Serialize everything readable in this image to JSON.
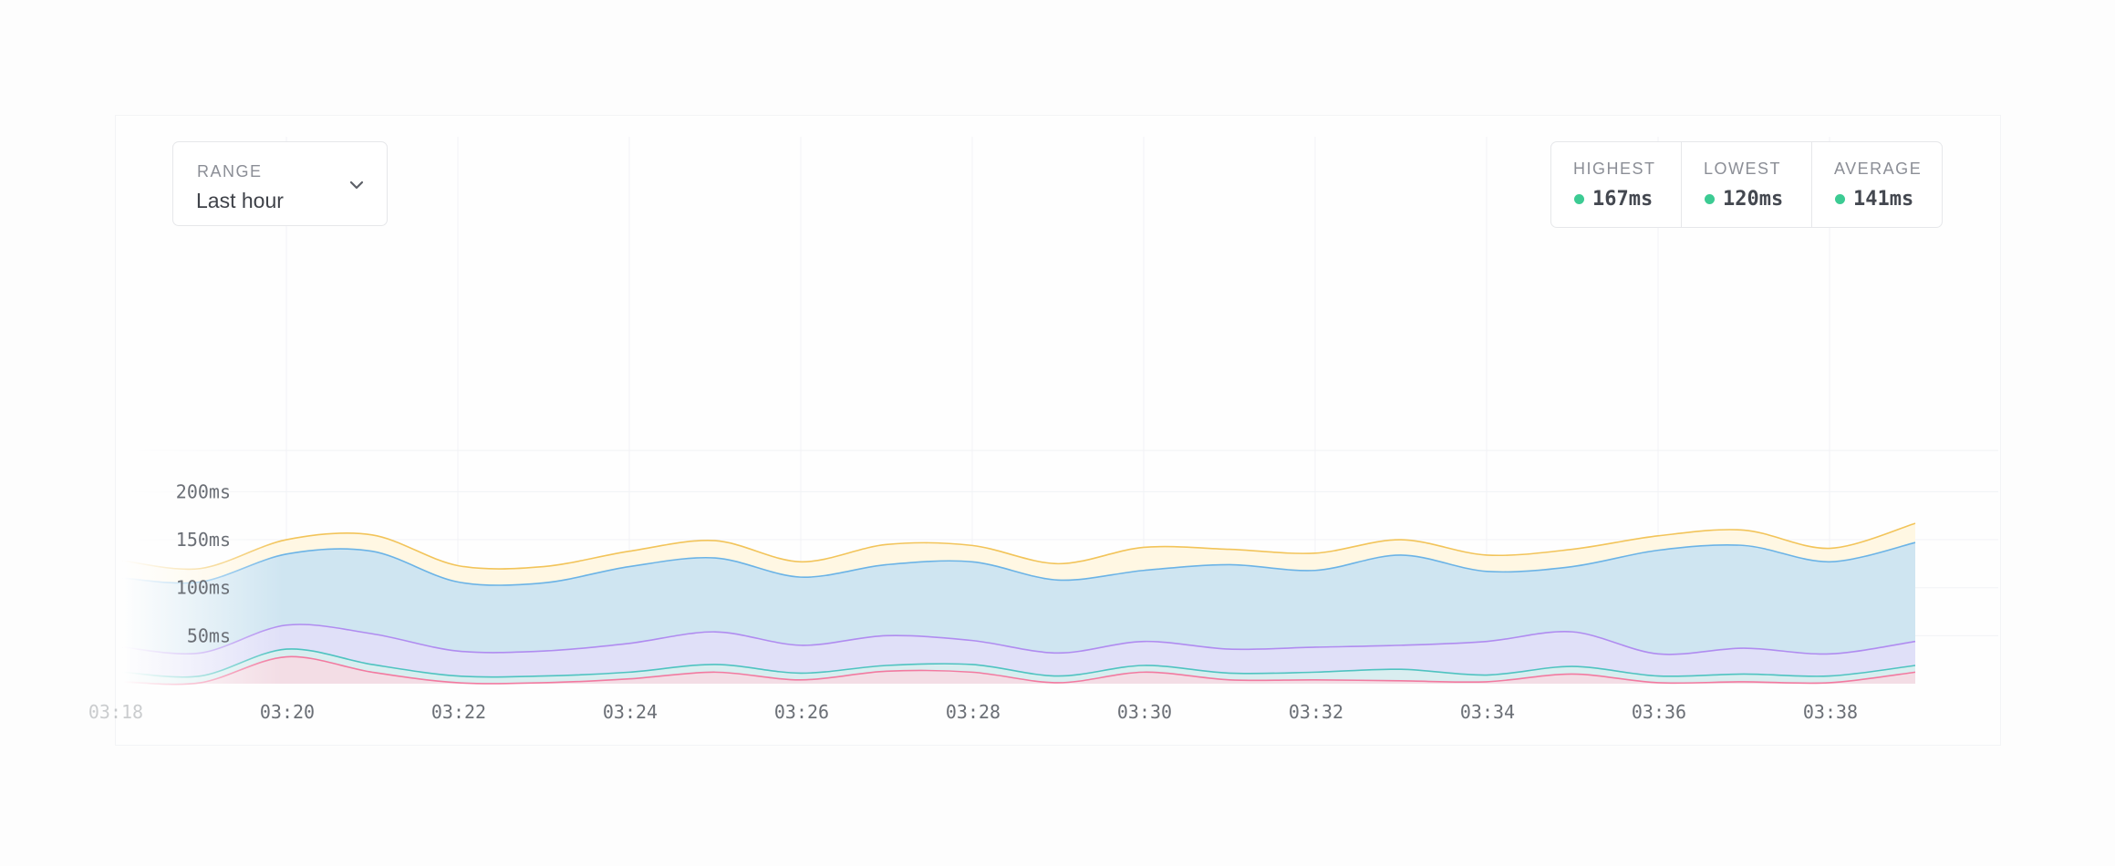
{
  "range": {
    "label": "RANGE",
    "value": "Last hour"
  },
  "stats": [
    {
      "label": "HIGHEST",
      "value": "167ms"
    },
    {
      "label": "LOWEST",
      "value": "120ms"
    },
    {
      "label": "AVERAGE",
      "value": "141ms"
    }
  ],
  "colors": {
    "status_dot": "#3ccb93",
    "layers": [
      "#f27aa0",
      "#4fc3c0",
      "#b08cf0",
      "#6bb3e6",
      "#f2c45a"
    ]
  },
  "icons": {
    "dropdown": "chevron-down-icon"
  },
  "chart_data": {
    "type": "area",
    "stacked": true,
    "x_unit": "time",
    "x": [
      "03:18",
      "03:19",
      "03:20",
      "03:21",
      "03:22",
      "03:23",
      "03:24",
      "03:25",
      "03:26",
      "03:27",
      "03:28",
      "03:29",
      "03:30",
      "03:31",
      "03:32",
      "03:33",
      "03:34",
      "03:35",
      "03:36",
      "03:37",
      "03:38",
      "03:39"
    ],
    "xticks": [
      "03:18",
      "03:20",
      "03:22",
      "03:24",
      "03:26",
      "03:28",
      "03:30",
      "03:32",
      "03:34",
      "03:36",
      "03:38"
    ],
    "yticks": [
      "50ms",
      "100ms",
      "150ms",
      "200ms"
    ],
    "ytick_values": [
      50,
      100,
      150,
      200
    ],
    "ylim": [
      0,
      220
    ],
    "grid": true,
    "series": [
      {
        "values": [
          2,
          1,
          28,
          12,
          1,
          1,
          5,
          12,
          4,
          13,
          12,
          1,
          12,
          4,
          4,
          3,
          2,
          10,
          1,
          2,
          1,
          12
        ]
      },
      {
        "values": [
          12,
          8,
          36,
          20,
          8,
          8,
          12,
          20,
          11,
          19,
          20,
          8,
          19,
          11,
          12,
          15,
          9,
          18,
          8,
          10,
          8,
          19
        ]
      },
      {
        "values": [
          38,
          32,
          61,
          52,
          34,
          34,
          42,
          54,
          40,
          50,
          45,
          32,
          44,
          36,
          38,
          40,
          44,
          54,
          31,
          37,
          31,
          44
        ]
      },
      {
        "values": [
          110,
          106,
          135,
          138,
          106,
          105,
          122,
          131,
          111,
          124,
          127,
          108,
          118,
          124,
          118,
          134,
          117,
          122,
          139,
          144,
          127,
          147
        ]
      },
      {
        "values": [
          128,
          120,
          150,
          155,
          123,
          122,
          138,
          149,
          127,
          145,
          144,
          125,
          142,
          140,
          136,
          150,
          134,
          140,
          154,
          160,
          141,
          167
        ]
      }
    ]
  }
}
